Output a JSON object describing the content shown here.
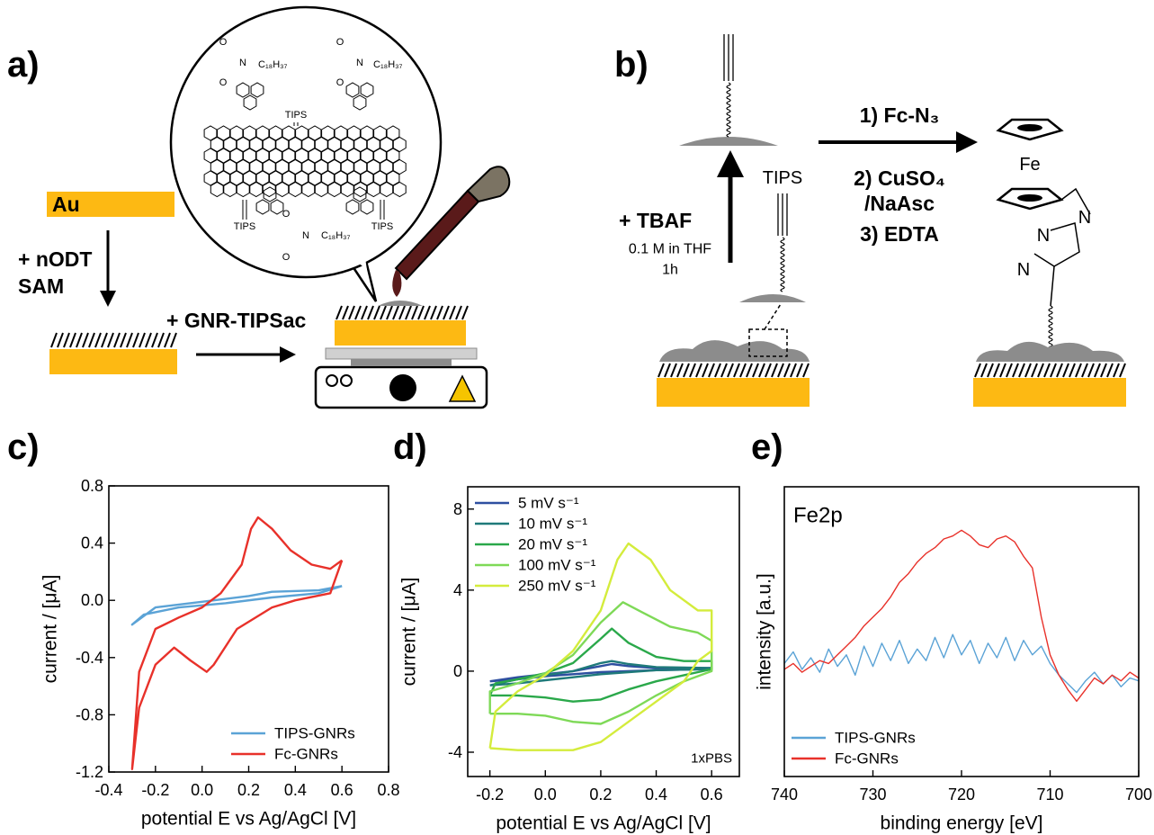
{
  "panel_a": {
    "label": "a)",
    "au": "Au",
    "step1": [
      "+ nODT",
      "SAM"
    ],
    "step2": "+ GNR-TIPSac",
    "molecule": {
      "tips": [
        "TIPS",
        "TIPS",
        "TIPS"
      ],
      "chain": [
        "C₁₈H₃₇",
        "C₁₈H₃₇",
        "C₁₈H₃₇"
      ],
      "atoms": [
        "O",
        "N",
        "O",
        "O",
        "N",
        "O",
        "O",
        "N",
        "O"
      ]
    }
  },
  "panel_b": {
    "label": "b)",
    "reagent": "+ TBAF",
    "conditions": [
      "0.1 M in THF",
      "1h"
    ],
    "tips": "TIPS",
    "steps": [
      "1) Fc-N₃",
      "2) CuSO₄",
      "/NaAsc",
      "3) EDTA"
    ],
    "fe": "Fe",
    "n": [
      "N",
      "N",
      "N"
    ]
  },
  "chart_data": [
    {
      "type": "line",
      "panel_label": "c)",
      "xlabel": "potential E vs Ag/AgCl [V]",
      "ylabel": "current / [μA]",
      "xlim": [
        -0.4,
        0.8
      ],
      "ylim": [
        -1.2,
        0.8
      ],
      "xticks": [
        -0.4,
        -0.2,
        {
          "value": 0,
          "label": "0.0"
        },
        0.2,
        0.4,
        0.6,
        0.8
      ],
      "yticks": [
        -1.2,
        -0.8,
        -0.4,
        {
          "value": 0,
          "label": "0.0"
        },
        0.4,
        0.8
      ],
      "legend": "lower right",
      "series": [
        {
          "name": "TIPS-GNRs",
          "color": "#5ba3d6",
          "x": [
            0.6,
            0.5,
            0.3,
            0.1,
            -0.1,
            -0.25,
            -0.3,
            -0.2,
            0.0,
            0.2,
            0.3,
            0.5,
            0.6
          ],
          "values": [
            0.1,
            0.05,
            0.02,
            -0.02,
            -0.05,
            -0.1,
            -0.17,
            -0.05,
            -0.01,
            0.03,
            0.06,
            0.07,
            0.1
          ]
        },
        {
          "name": "Fc-GNRs",
          "color": "#e8312a",
          "x": [
            0.6,
            0.55,
            0.4,
            0.3,
            0.15,
            0.05,
            0.02,
            -0.05,
            -0.12,
            -0.2,
            -0.27,
            -0.3,
            -0.27,
            -0.2,
            -0.1,
            0.0,
            0.08,
            0.17,
            0.21,
            0.24,
            0.3,
            0.38,
            0.47,
            0.55,
            0.6
          ],
          "values": [
            0.28,
            0.05,
            0.0,
            -0.05,
            -0.2,
            -0.45,
            -0.5,
            -0.42,
            -0.33,
            -0.45,
            -0.75,
            -1.18,
            -0.5,
            -0.2,
            -0.12,
            -0.05,
            0.05,
            0.25,
            0.5,
            0.58,
            0.5,
            0.35,
            0.25,
            0.22,
            0.28
          ]
        }
      ]
    },
    {
      "type": "line",
      "panel_label": "d)",
      "xlabel": "potential E vs Ag/AgCl [V]",
      "ylabel": "current / [μA]",
      "xlim": [
        -0.28,
        0.7
      ],
      "ylim": [
        -5.2,
        9.1
      ],
      "xticks": [
        -0.2,
        {
          "value": 0,
          "label": "0.0"
        },
        0.2,
        0.4,
        0.6
      ],
      "yticks": [
        -4,
        0,
        4,
        8
      ],
      "legend": "upper left",
      "annotation": "1xPBS",
      "annotation_position": "lower right",
      "series": [
        {
          "name": "5 mV s⁻¹",
          "color": "#2e4fa0",
          "x": [
            -0.2,
            -0.1,
            0,
            0.1,
            0.2,
            0.24,
            0.3,
            0.4,
            0.6,
            0.6,
            0.4,
            0.2,
            0.1,
            0,
            -0.1,
            -0.2
          ],
          "values": [
            -0.5,
            -0.3,
            -0.15,
            0,
            0.25,
            0.35,
            0.25,
            0.15,
            0.15,
            0.1,
            0.05,
            -0.05,
            -0.15,
            -0.25,
            -0.4,
            -0.5
          ]
        },
        {
          "name": "10 mV s⁻¹",
          "color": "#1f7a7a",
          "x": [
            -0.2,
            -0.1,
            0,
            0.1,
            0.2,
            0.24,
            0.3,
            0.4,
            0.6,
            0.6,
            0.4,
            0.3,
            0.2,
            0.1,
            0,
            -0.1,
            -0.2
          ],
          "values": [
            -0.7,
            -0.4,
            -0.2,
            0,
            0.4,
            0.5,
            0.35,
            0.2,
            0.15,
            0.1,
            0.05,
            -0.05,
            -0.15,
            -0.3,
            -0.45,
            -0.6,
            -0.7
          ]
        },
        {
          "name": "20 mV s⁻¹",
          "color": "#2aa84a",
          "x": [
            -0.2,
            -0.18,
            -0.1,
            0,
            0.1,
            0.2,
            0.24,
            0.3,
            0.4,
            0.5,
            0.6,
            0.6,
            0.5,
            0.4,
            0.3,
            0.2,
            0.1,
            0,
            -0.1,
            -0.2
          ],
          "values": [
            -1.2,
            -0.6,
            -0.4,
            -0.1,
            0.4,
            1.6,
            2.1,
            1.4,
            0.7,
            0.5,
            0.5,
            0.1,
            -0.2,
            -0.5,
            -0.9,
            -1.4,
            -1.5,
            -1.3,
            -1.2,
            -1.2
          ]
        },
        {
          "name": "100 mV s⁻¹",
          "color": "#7ed957",
          "x": [
            -0.2,
            -0.2,
            -0.1,
            0,
            0.1,
            0.2,
            0.28,
            0.35,
            0.45,
            0.55,
            0.6,
            0.6,
            0.5,
            0.4,
            0.3,
            0.2,
            0.1,
            0,
            -0.1,
            -0.2
          ],
          "values": [
            -2.1,
            -1.0,
            -0.6,
            -0.1,
            0.8,
            2.4,
            3.4,
            2.9,
            2.2,
            1.9,
            1.5,
            0.0,
            -0.5,
            -1.2,
            -2.0,
            -2.6,
            -2.5,
            -2.2,
            -2.1,
            -2.1
          ]
        },
        {
          "name": "250 mV s⁻¹",
          "color": "#d4ec3c",
          "x": [
            -0.2,
            -0.18,
            -0.1,
            0,
            0.1,
            0.2,
            0.26,
            0.3,
            0.38,
            0.45,
            0.55,
            0.6,
            0.6,
            0.55,
            0.5,
            0.4,
            0.3,
            0.2,
            0.1,
            0,
            -0.1,
            -0.2
          ],
          "values": [
            -3.8,
            -2.0,
            -1.0,
            -0.2,
            1.0,
            3.0,
            5.5,
            6.3,
            5.5,
            4.0,
            3.0,
            3.0,
            1.0,
            0.5,
            -0.5,
            -1.5,
            -2.5,
            -3.5,
            -3.9,
            -3.9,
            -3.9,
            -3.8
          ]
        }
      ]
    },
    {
      "type": "line",
      "panel_label": "e)",
      "xlabel": "binding energy [eV]",
      "ylabel": "intensity [a.u.]",
      "xlim": [
        740,
        700
      ],
      "ylim": [
        0,
        10
      ],
      "xticks": [
        740,
        730,
        720,
        710,
        700
      ],
      "legend": "lower left",
      "annotation": "Fe2p",
      "annotation_position": "upper left",
      "series": [
        {
          "name": "TIPS-GNRs",
          "color": "#5ba3d6",
          "x": [
            740,
            739,
            738,
            737,
            736,
            735,
            734,
            733,
            732,
            731,
            730,
            729,
            728,
            727,
            726,
            725,
            724,
            723,
            722,
            721,
            720,
            719,
            718,
            717,
            716,
            715,
            714,
            713,
            712,
            711,
            710,
            709,
            708,
            707,
            706,
            705,
            704,
            703,
            702,
            701,
            700
          ],
          "values": [
            3.9,
            4.3,
            3.7,
            4.1,
            3.6,
            4.4,
            3.8,
            4.2,
            3.5,
            4.5,
            3.8,
            4.6,
            4.0,
            4.7,
            3.9,
            4.4,
            4.0,
            4.8,
            4.1,
            4.9,
            4.2,
            4.7,
            3.9,
            4.6,
            4.1,
            4.8,
            4.0,
            4.7,
            4.2,
            4.5,
            3.9,
            3.5,
            3.2,
            2.9,
            3.3,
            3.6,
            3.2,
            3.5,
            3.1,
            3.4,
            3.3
          ]
        },
        {
          "name": "Fc-GNRs",
          "color": "#e8312a",
          "x": [
            740,
            739,
            738,
            737,
            736,
            735,
            734,
            733,
            732,
            731,
            730,
            729,
            728,
            727,
            726,
            725,
            724,
            723,
            722,
            721,
            720,
            719,
            718,
            717,
            716,
            715,
            714,
            713,
            712,
            711,
            710,
            709,
            708,
            707,
            706,
            705,
            704,
            703,
            702,
            701,
            700
          ],
          "values": [
            3.7,
            3.9,
            3.6,
            3.8,
            4.0,
            3.9,
            4.2,
            4.5,
            4.8,
            5.2,
            5.5,
            5.8,
            6.2,
            6.7,
            7.0,
            7.4,
            7.7,
            7.9,
            8.2,
            8.3,
            8.5,
            8.3,
            8.0,
            7.9,
            8.2,
            8.3,
            8.1,
            7.6,
            7.2,
            5.5,
            4.2,
            3.5,
            3.0,
            2.6,
            3.0,
            3.4,
            3.2,
            3.5,
            3.3,
            3.6,
            3.4
          ]
        }
      ]
    }
  ]
}
